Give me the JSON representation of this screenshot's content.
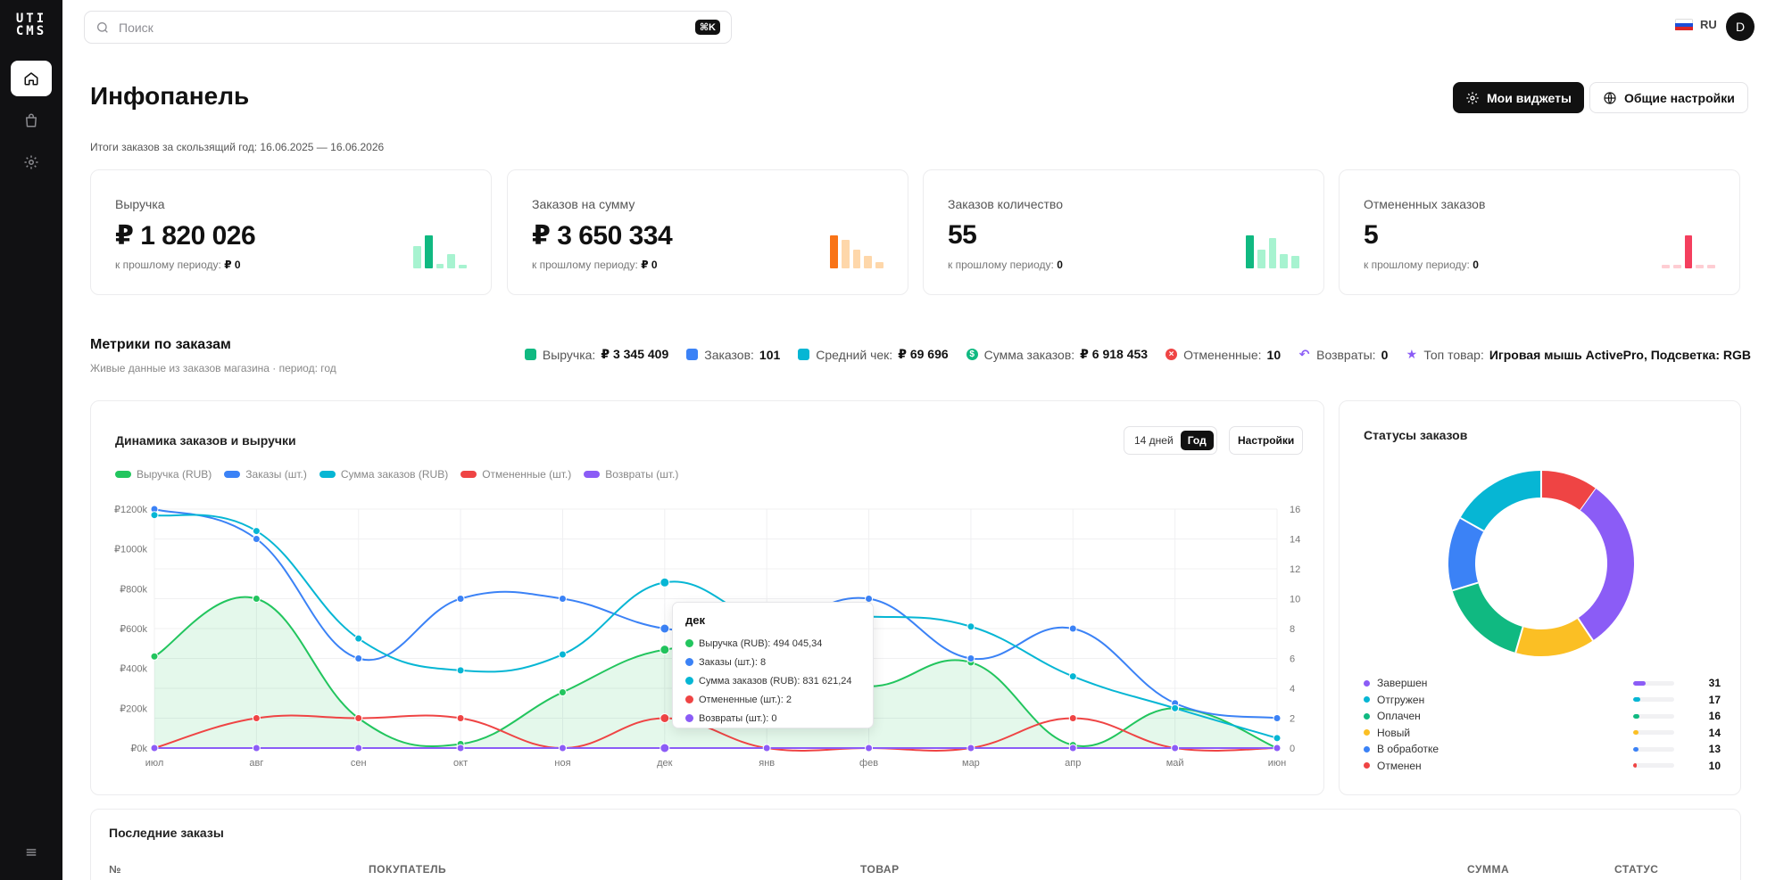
{
  "app": {
    "logo": "UTI CMS"
  },
  "sidebar": {
    "items": [
      {
        "name": "home",
        "icon": "home-icon"
      },
      {
        "name": "shop",
        "icon": "bag-icon"
      },
      {
        "name": "settings",
        "icon": "gear-icon"
      },
      {
        "name": "menu",
        "icon": "menu-icon"
      }
    ]
  },
  "header": {
    "search_placeholder": "Поиск",
    "search_shortcut": "⌘K",
    "lang": "RU",
    "avatar": "D"
  },
  "page": {
    "title": "Инфопанель",
    "my_widgets": "Мои виджеты",
    "general_settings": "Общие настройки",
    "period": "Итоги заказов за скользящий год: 16.06.2025 — 16.06.2026"
  },
  "kpis": [
    {
      "label": "Выручка",
      "value": "₽ 1 820 026",
      "sub_label": "к прошлому периоду:",
      "sub_value": "₽ 0",
      "bars": [
        0.55,
        0.8,
        0.1,
        0.35,
        0.08
      ],
      "color": "#10b981",
      "light": "#a7f3d0"
    },
    {
      "label": "Заказов на сумму",
      "value": "₽ 3 650 334",
      "sub_label": "к прошлому периоду:",
      "sub_value": "₽ 0",
      "bars": [
        0.8,
        0.7,
        0.45,
        0.3,
        0.15
      ],
      "color": "#f97316",
      "light": "#fed7aa"
    },
    {
      "label": "Заказов количество",
      "value": "55",
      "sub_label": "к прошлому периоду:",
      "sub_value": "0",
      "bars": [
        0.8,
        0.45,
        0.75,
        0.35,
        0.3
      ],
      "color": "#10b981",
      "light": "#a7f3d0"
    },
    {
      "label": "Отмененных заказов",
      "value": "5",
      "sub_label": "к прошлому периоду:",
      "sub_value": "0",
      "bars": [
        0.08,
        0.08,
        0.8,
        0.08,
        0.08
      ],
      "color": "#f43f5e",
      "light": "#fecdd3"
    }
  ],
  "metrics": {
    "title": "Метрики по заказам",
    "subtitle": "Живые данные из заказов магазина · период: год",
    "items": [
      {
        "label": "Выручка:",
        "value": "₽ 3 345 409",
        "icon": "cash-icon",
        "color": "#10b981"
      },
      {
        "label": "Заказов:",
        "value": "101",
        "icon": "bag-icon",
        "color": "#3b82f6"
      },
      {
        "label": "Средний чек:",
        "value": "₽ 69 696",
        "icon": "receipt-icon",
        "color": "#06b6d4"
      },
      {
        "label": "Сумма заказов:",
        "value": "₽ 6 918 453",
        "icon": "coin-icon",
        "color": "#10b981"
      },
      {
        "label": "Отмененные:",
        "value": "10",
        "icon": "cancel-icon",
        "color": "#ef4444"
      },
      {
        "label": "Возвраты:",
        "value": "0",
        "icon": "return-icon",
        "color": "#8b5cf6"
      },
      {
        "label": "Топ товар:",
        "value": "Игровая мышь ActivePro, Подсветка: RGB",
        "icon": "star-icon",
        "color": "#8b5cf6"
      }
    ]
  },
  "chart_card": {
    "title": "Динамика заказов и выручки",
    "range_options": [
      "14 дней",
      "Год"
    ],
    "range_selected": "Год",
    "settings": "Настройки",
    "tooltip": {
      "title": "дек",
      "rows": [
        {
          "text": "Выручка (RUB): 494 045,34",
          "color": "#22c55e"
        },
        {
          "text": "Заказы (шт.): 8",
          "color": "#3b82f6"
        },
        {
          "text": "Сумма заказов (RUB): 831 621,24",
          "color": "#06b6d4"
        },
        {
          "text": "Отмененные (шт.): 2",
          "color": "#ef4444"
        },
        {
          "text": "Возвраты (шт.): 0",
          "color": "#8b5cf6"
        }
      ]
    }
  },
  "chart_data": {
    "type": "line",
    "categories": [
      "июл",
      "авг",
      "сен",
      "окт",
      "ноя",
      "дек",
      "янв",
      "фев",
      "мар",
      "апр",
      "май",
      "июн"
    ],
    "left_axis": {
      "ticks": [
        "₽0k",
        "₽200k",
        "₽400k",
        "₽600k",
        "₽800k",
        "₽1000k",
        "₽1200k"
      ],
      "ylim": [
        0,
        1200000
      ]
    },
    "right_axis": {
      "ticks": [
        "0",
        "2",
        "4",
        "6",
        "8",
        "10",
        "12",
        "14",
        "16"
      ],
      "ylim": [
        0,
        16
      ]
    },
    "grid": true,
    "legend_position": "top-left",
    "series": [
      {
        "name": "Выручка (RUB)",
        "axis": "left",
        "color": "#22c55e",
        "area": true,
        "values": [
          460000,
          750000,
          150000,
          20000,
          280000,
          494045,
          450000,
          310000,
          430000,
          15000,
          200000,
          0
        ]
      },
      {
        "name": "Заказы (шт.)",
        "axis": "right",
        "color": "#3b82f6",
        "area": false,
        "values": [
          16,
          14,
          6,
          10,
          10,
          8,
          8,
          10,
          6,
          8,
          3,
          2
        ]
      },
      {
        "name": "Сумма заказов (RUB)",
        "axis": "left",
        "color": "#06b6d4",
        "area": false,
        "values": [
          1170000,
          1090000,
          550000,
          390000,
          470000,
          831621,
          640000,
          660000,
          610000,
          360000,
          200000,
          50000
        ]
      },
      {
        "name": "Отмененные (шт.)",
        "axis": "right",
        "color": "#ef4444",
        "area": false,
        "values": [
          0,
          2,
          2,
          2,
          0,
          2,
          0,
          0,
          0,
          2,
          0,
          0
        ]
      },
      {
        "name": "Возвраты (шт.)",
        "axis": "right",
        "color": "#8b5cf6",
        "area": false,
        "values": [
          0,
          0,
          0,
          0,
          0,
          0,
          0,
          0,
          0,
          0,
          0,
          0
        ]
      }
    ]
  },
  "status_card": {
    "title": "Статусы заказов",
    "items": [
      {
        "label": "Завершен",
        "value": 31,
        "color": "#8b5cf6"
      },
      {
        "label": "Отгружен",
        "value": 17,
        "color": "#06b6d4"
      },
      {
        "label": "Оплачен",
        "value": 16,
        "color": "#10b981"
      },
      {
        "label": "Новый",
        "value": 14,
        "color": "#fbbf24"
      },
      {
        "label": "В обработке",
        "value": 13,
        "color": "#3b82f6"
      },
      {
        "label": "Отменен",
        "value": 10,
        "color": "#ef4444"
      }
    ],
    "donut_order": [
      "Завершен",
      "Новый",
      "Оплачен",
      "В обработке",
      "Отгружен",
      "Отменен"
    ]
  },
  "orders": {
    "title": "Последние заказы",
    "columns": [
      "№",
      "ПОКУПАТЕЛЬ",
      "ТОВАР",
      "СУММА",
      "СТАТУС"
    ]
  }
}
